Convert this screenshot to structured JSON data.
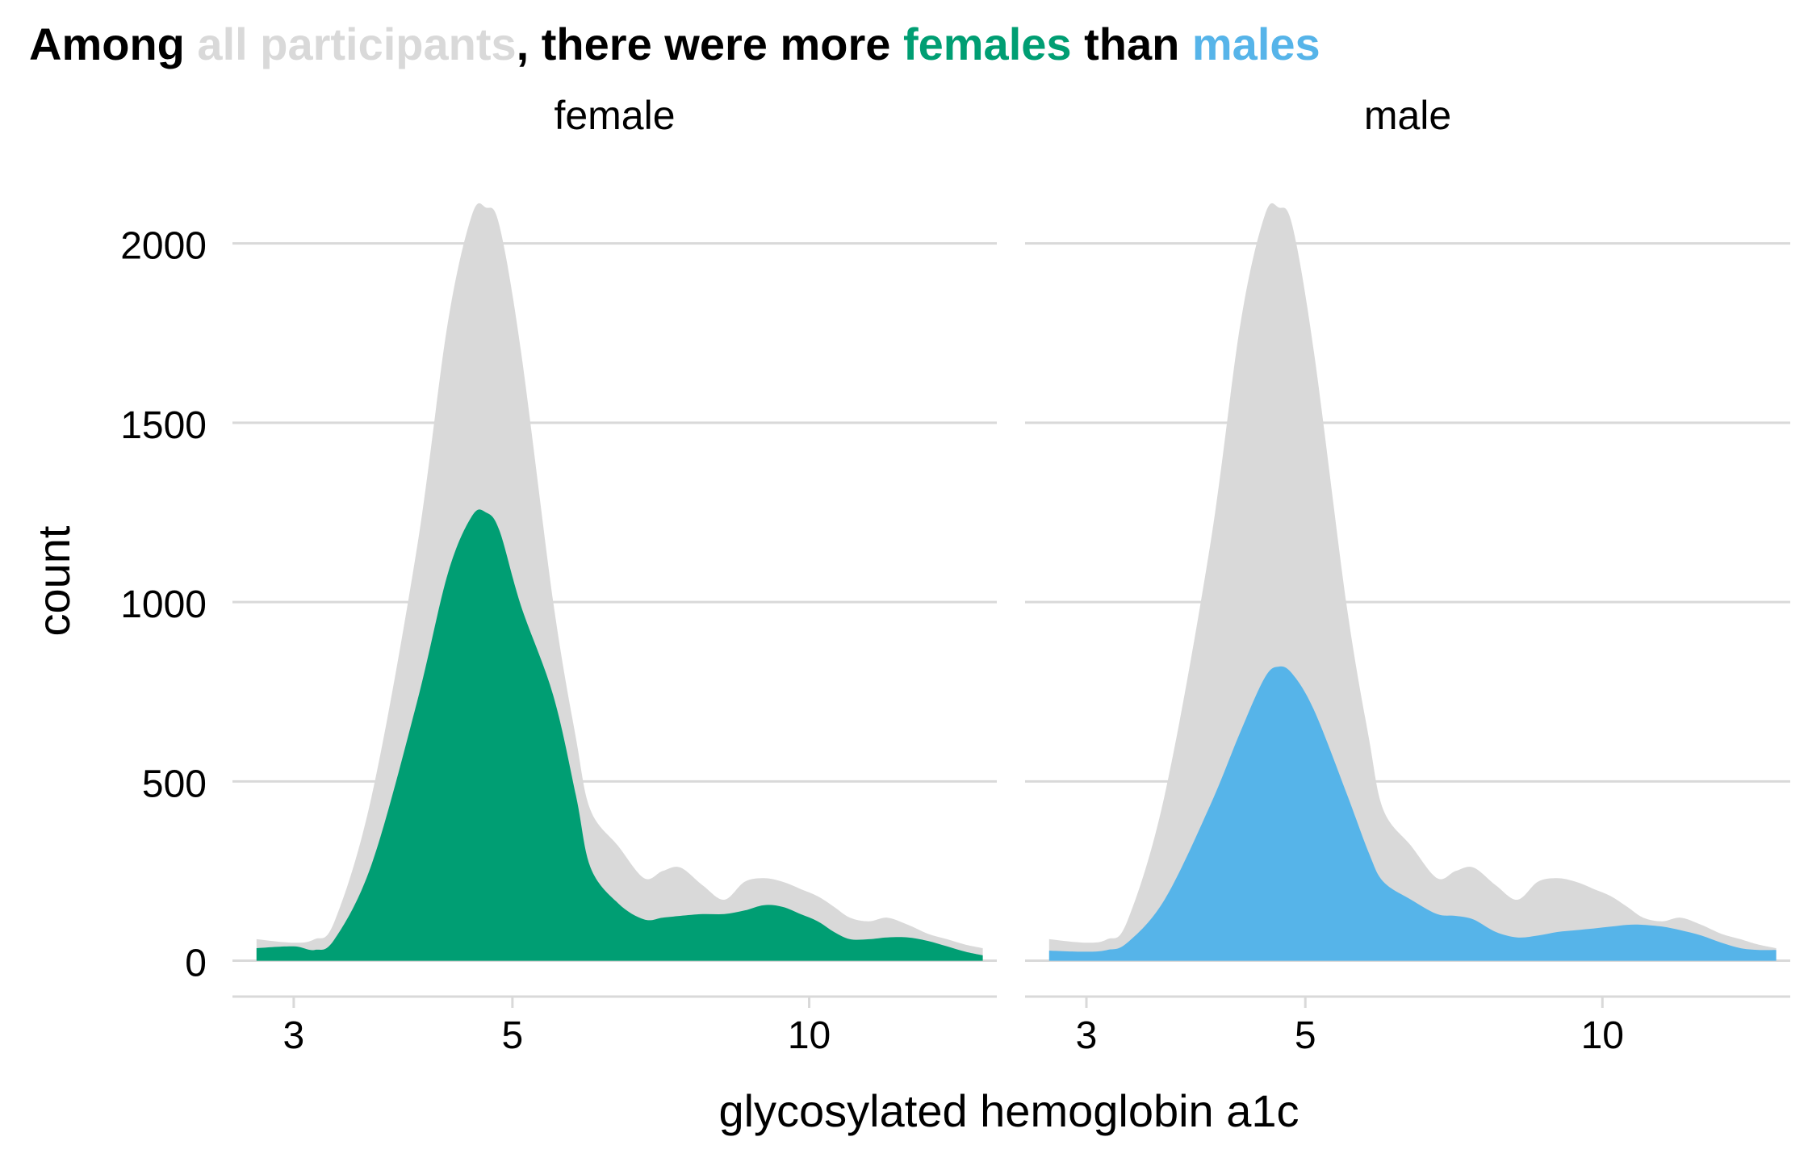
{
  "title": {
    "part1": "Among ",
    "all": "all participants",
    "part2": ", there were more ",
    "females": "females",
    "part3": " than ",
    "males": "males"
  },
  "colors": {
    "all": "#d9d9d9",
    "female": "#009e73",
    "male": "#56b4e9",
    "grid": "#d9d9d9",
    "text": "#000000"
  },
  "chart_data": {
    "type": "area",
    "xlabel": "glycosylated hemoglobin a1c",
    "ylabel": "count",
    "x_scale": "log",
    "xlim": [
      2.6,
      15.5
    ],
    "ylim": [
      -100,
      2150
    ],
    "x_ticks": [
      3,
      5,
      10
    ],
    "y_ticks": [
      0,
      500,
      1000,
      1500,
      2000
    ],
    "grid": "horizontal",
    "legend": "none",
    "facets": [
      {
        "label": "female",
        "series": [
          {
            "x": [
              2.75,
              3.0,
              3.15,
              3.3,
              3.6,
              4.0,
              4.3,
              4.55,
              4.7,
              4.85,
              5.1,
              5.5,
              5.8,
              6.0,
              6.4,
              6.8,
              7.1,
              7.4,
              7.8,
              8.2,
              8.6,
              9.0,
              9.4,
              9.8,
              10.2,
              10.6,
              11.0,
              11.5,
              12.0,
              12.6,
              13.2,
              13.8,
              14.4,
              15.0
            ],
            "y": [
              60,
              50,
              60,
              110,
              460,
              1150,
              1780,
              2080,
              2100,
              2050,
              1700,
              1000,
              620,
              420,
              320,
              230,
              250,
              260,
              210,
              170,
              220,
              230,
              220,
              200,
              180,
              150,
              120,
              110,
              120,
              100,
              75,
              60,
              45,
              35
            ]
          },
          {
            "x": [
              2.75,
              3.0,
              3.15,
              3.3,
              3.6,
              4.0,
              4.3,
              4.55,
              4.7,
              4.85,
              5.1,
              5.5,
              5.8,
              6.0,
              6.4,
              6.8,
              7.1,
              7.4,
              7.8,
              8.2,
              8.6,
              9.0,
              9.4,
              9.8,
              10.2,
              10.6,
              11.0,
              11.5,
              12.0,
              12.6,
              13.2,
              13.8,
              14.4,
              15.0
            ],
            "y": [
              35,
              40,
              30,
              60,
              270,
              720,
              1080,
              1240,
              1250,
              1200,
              990,
              740,
              460,
              260,
              160,
              115,
              120,
              125,
              130,
              130,
              140,
              155,
              150,
              130,
              110,
              80,
              60,
              60,
              65,
              65,
              55,
              40,
              25,
              15
            ]
          }
        ]
      },
      {
        "label": "male",
        "series": [
          {
            "x": [
              2.75,
              3.0,
              3.15,
              3.3,
              3.6,
              4.0,
              4.3,
              4.55,
              4.7,
              4.85,
              5.1,
              5.5,
              5.8,
              6.0,
              6.4,
              6.8,
              7.1,
              7.4,
              7.8,
              8.2,
              8.6,
              9.0,
              9.4,
              9.8,
              10.2,
              10.6,
              11.0,
              11.5,
              12.0,
              12.6,
              13.2,
              13.8,
              14.4,
              15.0
            ],
            "y": [
              60,
              50,
              60,
              110,
              460,
              1150,
              1780,
              2080,
              2100,
              2050,
              1700,
              1000,
              620,
              420,
              320,
              230,
              250,
              260,
              210,
              170,
              220,
              230,
              220,
              200,
              180,
              150,
              120,
              110,
              120,
              100,
              75,
              60,
              45,
              35
            ]
          },
          {
            "x": [
              2.75,
              3.0,
              3.15,
              3.3,
              3.6,
              4.0,
              4.3,
              4.55,
              4.7,
              4.85,
              5.1,
              5.5,
              5.8,
              6.0,
              6.4,
              6.8,
              7.1,
              7.4,
              7.8,
              8.2,
              8.6,
              9.0,
              9.4,
              9.8,
              10.2,
              10.6,
              11.0,
              11.5,
              12.0,
              12.6,
              13.2,
              13.8,
              14.4,
              15.0
            ],
            "y": [
              28,
              25,
              30,
              50,
              170,
              430,
              640,
              790,
              820,
              800,
              700,
              470,
              300,
              220,
              170,
              130,
              125,
              115,
              80,
              65,
              70,
              80,
              85,
              90,
              95,
              100,
              100,
              95,
              85,
              70,
              50,
              35,
              30,
              30
            ]
          }
        ]
      }
    ]
  }
}
